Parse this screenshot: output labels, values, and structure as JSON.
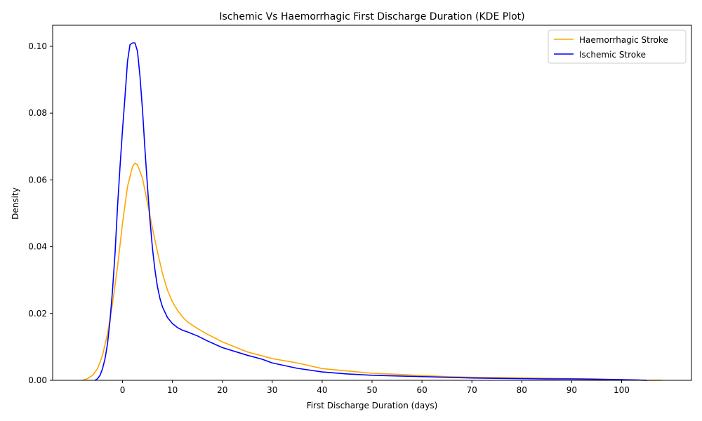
{
  "chart_data": {
    "type": "line",
    "title": "Ischemic Vs Haemorrhagic First Discharge Duration (KDE Plot)",
    "xlabel": "First Discharge Duration (days)",
    "ylabel": "Density",
    "xlim": [
      -14,
      114
    ],
    "ylim": [
      0,
      0.1063
    ],
    "xticks": [
      0,
      10,
      20,
      30,
      40,
      50,
      60,
      70,
      80,
      90,
      100
    ],
    "xtick_labels": [
      "0",
      "10",
      "20",
      "30",
      "40",
      "50",
      "60",
      "70",
      "80",
      "90",
      "100"
    ],
    "yticks": [
      0.0,
      0.02,
      0.04,
      0.06,
      0.08,
      0.1
    ],
    "ytick_labels": [
      "0.00",
      "0.02",
      "0.04",
      "0.06",
      "0.08",
      "0.10"
    ],
    "grid": false,
    "legend_position": "top-right",
    "series": [
      {
        "name": "Haemorrhagic Stroke",
        "color": "#ffa500",
        "x": [
          -8,
          -7,
          -6,
          -5,
          -4,
          -3,
          -2,
          -1,
          0,
          1,
          2,
          2.5,
          3,
          4,
          5,
          6,
          7,
          8,
          9,
          10,
          11,
          12,
          13,
          15,
          17,
          20,
          25,
          30,
          35,
          40,
          45,
          50,
          55,
          60,
          65,
          70,
          75,
          80,
          85,
          90,
          95,
          100,
          103,
          105,
          108
        ],
        "y": [
          0.0,
          0.0005,
          0.0015,
          0.0035,
          0.0075,
          0.014,
          0.023,
          0.034,
          0.047,
          0.058,
          0.064,
          0.065,
          0.0645,
          0.0605,
          0.053,
          0.0455,
          0.0385,
          0.032,
          0.027,
          0.0235,
          0.021,
          0.019,
          0.0175,
          0.0155,
          0.0138,
          0.0115,
          0.0085,
          0.0065,
          0.0052,
          0.0035,
          0.0028,
          0.0021,
          0.0018,
          0.0014,
          0.0011,
          0.0009,
          0.0008,
          0.0007,
          0.0006,
          0.0005,
          0.0004,
          0.0002,
          0.0001,
          0.0,
          0.0
        ]
      },
      {
        "name": "Ischemic Stroke",
        "color": "#0000ff",
        "x": [
          -5.5,
          -5,
          -4.5,
          -4,
          -3.5,
          -3,
          -2.5,
          -2,
          -1.5,
          -1,
          -0.5,
          0,
          0.5,
          1,
          1.5,
          2,
          2.5,
          3,
          3.5,
          4,
          4.5,
          5,
          5.5,
          6,
          6.5,
          7,
          7.5,
          8,
          9,
          10,
          11,
          12,
          13,
          15,
          17,
          20,
          25,
          28,
          30,
          35,
          40,
          45,
          50,
          55,
          60,
          65,
          70,
          75,
          80,
          85,
          90,
          95,
          100,
          103,
          105
        ],
        "y": [
          0.0,
          0.0005,
          0.0015,
          0.0035,
          0.0065,
          0.011,
          0.018,
          0.027,
          0.038,
          0.052,
          0.064,
          0.075,
          0.085,
          0.0955,
          0.1005,
          0.101,
          0.101,
          0.0985,
          0.091,
          0.081,
          0.069,
          0.058,
          0.048,
          0.0395,
          0.033,
          0.028,
          0.0245,
          0.022,
          0.0188,
          0.017,
          0.0158,
          0.015,
          0.0145,
          0.0133,
          0.0118,
          0.0098,
          0.0075,
          0.0063,
          0.0052,
          0.0036,
          0.0025,
          0.0019,
          0.0015,
          0.0013,
          0.0011,
          0.0009,
          0.0007,
          0.0006,
          0.0005,
          0.0004,
          0.0004,
          0.0003,
          0.0002,
          0.0001,
          0.0
        ]
      }
    ]
  }
}
